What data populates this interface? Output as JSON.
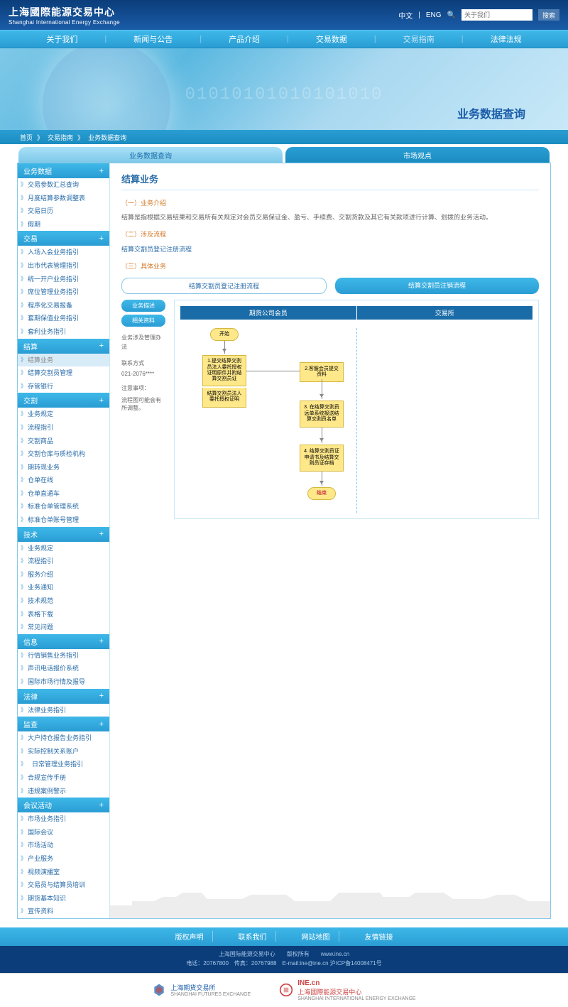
{
  "header": {
    "logo_cn": "上海國際能源交易中心",
    "logo_en": "Shanghai International Energy Exchange",
    "lang_cn": "中文",
    "lang_en": "ENG",
    "search_placeholder": "关于我们",
    "search_btn": "搜索"
  },
  "nav": [
    "关于我们",
    "新闻与公告",
    "产品介绍",
    "交易数据",
    "交易指南",
    "法律法规"
  ],
  "nav_active_index": 4,
  "banner": {
    "title": "业务数据查询",
    "binary": "01010101010101010"
  },
  "breadcrumb": [
    "首页",
    "交易指南",
    "业务数据查询"
  ],
  "tabs": [
    {
      "label": "业务数据查询",
      "active": true
    },
    {
      "label": "市场观点",
      "active": false
    }
  ],
  "sidebar": [
    {
      "header": "业务数据",
      "items": [
        "交易参数汇总查询",
        "月度结算参数调整表",
        "交易日历",
        "假期"
      ]
    },
    {
      "header": "交易",
      "items": [
        "入场入会业务指引",
        "出市代表管理指引",
        "统一开户业务指引",
        "席位管理业务指引",
        "程序化交易报备",
        "套期保值业务指引",
        "套利业务指引"
      ]
    },
    {
      "header": "结算",
      "items": [
        {
          "t": "结算业务",
          "sel": true
        },
        "结算交割员管理",
        "存管银行"
      ]
    },
    {
      "header": "交割",
      "items": [
        "业务规定",
        "流程指引",
        "交割商品",
        "交割仓库与质检机构",
        "期转现业务",
        "仓单在线",
        "仓单直通车",
        "标准仓单管理系统",
        "标准仓单账号管理"
      ]
    },
    {
      "header": "技术",
      "items": [
        "业务规定",
        "流程指引",
        "服务介绍",
        "业务通知",
        "技术规范",
        "表格下载",
        "常见问题"
      ]
    },
    {
      "header": "信息",
      "items": [
        "行情销售业务指引",
        "声讯电话报价系统",
        "国际市场行情及报导"
      ]
    },
    {
      "header": "法律",
      "items": [
        "法律业务指引"
      ]
    },
    {
      "header": "监查",
      "items": [
        "大户持仓报告业务指引",
        {
          "t": "实际控制关系账户",
          "sub": "日常管理业务指引"
        },
        "合规宣传手册",
        "违规案例警示"
      ]
    },
    {
      "header": "会议活动",
      "items": [
        "市场业务指引",
        "国际会议",
        "市场活动",
        "产业服务",
        "视频演播室",
        "交易员与结算员培训",
        "期货基本知识",
        "宣传资料"
      ]
    }
  ],
  "content": {
    "title": "结算业务",
    "s1_h": "（一）业务介绍",
    "s1_t": "结算是指根据交易结果和交易所有关规定对会员交易保证金、盈亏、手续费、交割货款及其它有关款项进行计算、划拨的业务活动。",
    "s2_h": "（二）涉及流程",
    "s2_t": "结算交割员登记注册流程",
    "s3_h": "（三）具体业务",
    "left_pills": [
      "业务描述",
      "相关资料"
    ],
    "left_t1": "业务涉及管理办法",
    "left_t2": "联系方式",
    "left_t3": "021-2076****",
    "left_t4": "注意事项：",
    "left_t5": "流程图可能会有所调整。",
    "proc_tabs": [
      {
        "label": "结算交割员登记注册流程",
        "active": true
      },
      {
        "label": "结算交割员注销流程",
        "active": false
      }
    ],
    "flow_cols": [
      "期货公司会员",
      "交易所"
    ],
    "flow": {
      "start": "开始",
      "n1": "1.提交结算交割员法人委托授权证明原件并附结算交割员证",
      "n1b": "结算交割员法人委托授权证明",
      "n2": "2.客服会员提交资料",
      "n3": "3. 在结算交割员远单系统报送结算交割员名单",
      "n4": "4. 结算交割员证申请书及结算交割员证存档",
      "end": "结束"
    }
  },
  "footer_links": [
    "版权声明",
    "联系我们",
    "网站地图",
    "友情链接"
  ],
  "footer_info1": "上海国际能源交易中心　　版权所有　　www.ine.cn",
  "footer_info2": "电话：20767800　传真：20767988　E-mail:ine@ine.cn 沪ICP备14008471号",
  "footer_logos": {
    "l1": "上海期货交易所",
    "l1_en": "SHANGHAI FUTURES EXCHANGE",
    "l2_brand": "INE.cn",
    "l2": "上海國際能源交易中心",
    "l2_en": "SHANGHAI INTERNATIONAL ENERGY EXCHANGE"
  }
}
